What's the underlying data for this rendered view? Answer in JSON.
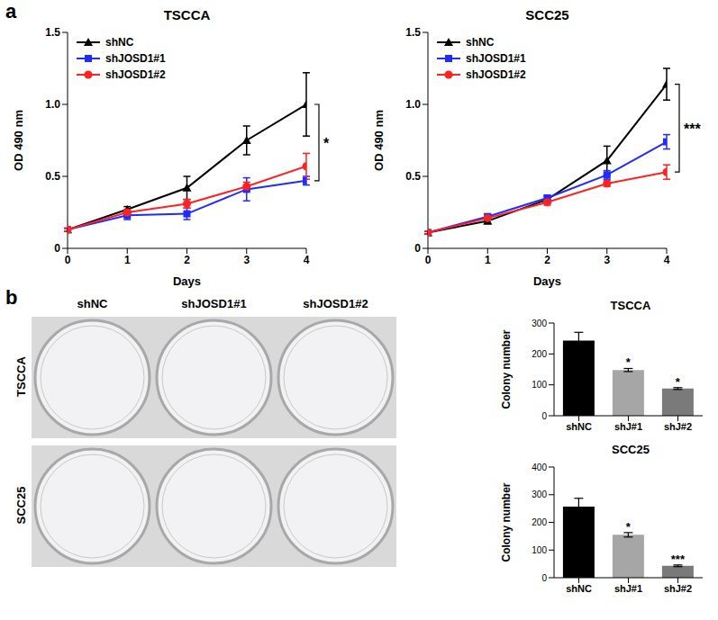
{
  "figure": {
    "panel_labels": [
      "a",
      "b"
    ],
    "photo": {
      "columns": [
        "shNC",
        "shJOSD1#1",
        "shJOSD1#2"
      ],
      "rows": [
        "TSCCA",
        "SCC25"
      ]
    }
  },
  "chart_data": [
    {
      "type": "line",
      "title": "TSCCA",
      "x_label": "Days",
      "y_label": "OD 490 nm",
      "x": [
        0,
        1,
        2,
        3,
        4
      ],
      "xlim": [
        0,
        4
      ],
      "xticks": [
        0,
        1,
        2,
        3,
        4
      ],
      "ylim": [
        0,
        1.5
      ],
      "yticks": [
        0,
        0.5,
        {
          "value": 1,
          "label": "1.0"
        },
        1.5
      ],
      "legend": "upper left",
      "annotations": [
        {
          "text": "*"
        }
      ],
      "series": [
        {
          "name": "shNC",
          "color": "#000000",
          "marker": "triangle",
          "values": [
            0.13,
            0.27,
            0.42,
            0.75,
            1.0
          ],
          "errors": [
            0.01,
            0.02,
            0.08,
            0.1,
            0.22
          ]
        },
        {
          "name": "shJOSD1#1",
          "color": "#1f2bff",
          "marker": "square",
          "values": [
            0.13,
            0.23,
            0.24,
            0.41,
            0.47
          ],
          "errors": [
            0.01,
            0.03,
            0.04,
            0.08,
            0.03
          ]
        },
        {
          "name": "shJOSD1#2",
          "color": "#ff2222",
          "marker": "circle",
          "values": [
            0.13,
            0.25,
            0.31,
            0.43,
            0.57
          ],
          "errors": [
            0.01,
            0.02,
            0.03,
            0.03,
            0.09
          ]
        }
      ]
    },
    {
      "type": "line",
      "title": "SCC25",
      "x_label": "Days",
      "y_label": "OD 490 nm",
      "x": [
        0,
        1,
        2,
        3,
        4
      ],
      "xlim": [
        0,
        4
      ],
      "xticks": [
        0,
        1,
        2,
        3,
        4
      ],
      "ylim": [
        0,
        1.5
      ],
      "yticks": [
        0,
        0.5,
        {
          "value": 1,
          "label": "1.0"
        },
        1.5
      ],
      "legend": "upper left",
      "annotations": [
        {
          "text": "***"
        }
      ],
      "series": [
        {
          "name": "shNC",
          "color": "#000000",
          "marker": "triangle",
          "values": [
            0.11,
            0.19,
            0.34,
            0.61,
            1.14
          ],
          "errors": [
            0.01,
            0.02,
            0.02,
            0.1,
            0.11
          ]
        },
        {
          "name": "shJOSD1#1",
          "color": "#1f2bff",
          "marker": "square",
          "values": [
            0.11,
            0.22,
            0.35,
            0.51,
            0.74
          ],
          "errors": [
            0.01,
            0.02,
            0.02,
            0.03,
            0.05
          ]
        },
        {
          "name": "shJOSD1#2",
          "color": "#ff2222",
          "marker": "circle",
          "values": [
            0.11,
            0.21,
            0.32,
            0.45,
            0.53
          ],
          "errors": [
            0.01,
            0.01,
            0.02,
            0.02,
            0.05
          ]
        }
      ]
    },
    {
      "type": "bar",
      "title": "TSCCA",
      "y_label": "Colony number",
      "categories": [
        "shNC",
        "shJ#1",
        "shJ#2"
      ],
      "values": [
        243,
        148,
        88
      ],
      "errors": [
        27,
        5,
        3
      ],
      "significance": [
        null,
        "*",
        "*"
      ],
      "colors": [
        "#000000",
        "#a6a6a6",
        "#7a7a7a"
      ],
      "ylim": [
        0,
        300
      ],
      "yticks": [
        0,
        100,
        200,
        300
      ]
    },
    {
      "type": "bar",
      "title": "SCC25",
      "y_label": "Colony number",
      "categories": [
        "shNC",
        "shJ#1",
        "shJ#2"
      ],
      "values": [
        257,
        155,
        43
      ],
      "errors": [
        30,
        8,
        3
      ],
      "significance": [
        null,
        "*",
        "***"
      ],
      "colors": [
        "#000000",
        "#a6a6a6",
        "#7a7a7a"
      ],
      "ylim": [
        0,
        400
      ],
      "yticks": [
        0,
        100,
        200,
        300,
        400
      ]
    }
  ]
}
